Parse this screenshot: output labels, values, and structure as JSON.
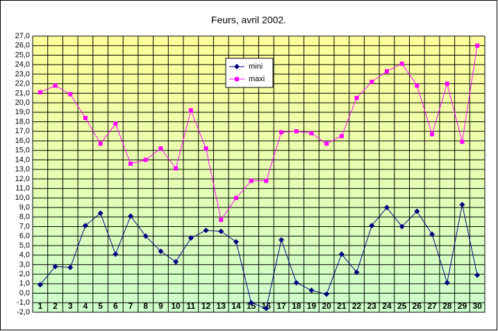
{
  "chart_data": {
    "type": "line",
    "title": "Feurs, avril 2002.",
    "categories": [
      "1",
      "2",
      "3",
      "4",
      "5",
      "6",
      "7",
      "8",
      "9",
      "10",
      "11",
      "12",
      "13",
      "14",
      "15",
      "16",
      "17",
      "18",
      "19",
      "20",
      "21",
      "22",
      "23",
      "24",
      "25",
      "26",
      "27",
      "28",
      "29",
      "30"
    ],
    "series": [
      {
        "name": "mini",
        "color": "#000080",
        "values": [
          0.9,
          2.8,
          2.7,
          7.1,
          8.4,
          4.1,
          8.1,
          6.0,
          4.4,
          3.3,
          5.8,
          6.6,
          6.5,
          5.4,
          -1.0,
          -1.6,
          5.6,
          1.1,
          0.3,
          -0.1,
          4.1,
          2.2,
          7.1,
          9.0,
          7.0,
          8.6,
          6.2,
          1.1,
          9.3,
          1.9
        ]
      },
      {
        "name": "maxi",
        "color": "#ff00ff",
        "values": [
          21.1,
          21.8,
          20.9,
          18.4,
          15.7,
          17.8,
          13.6,
          14.0,
          15.2,
          13.1,
          19.2,
          15.2,
          7.7,
          10.0,
          11.8,
          11.8,
          16.9,
          17.0,
          16.8,
          15.7,
          16.5,
          20.5,
          22.2,
          23.3,
          24.1,
          21.8,
          16.7,
          22.0,
          15.9,
          26.0
        ]
      }
    ],
    "ylim": [
      -2,
      27
    ],
    "yticks": [
      {
        "value": -2,
        "label": "-2,0"
      },
      {
        "value": -1,
        "label": "-1,0"
      },
      {
        "value": 0,
        "label": "0,0"
      },
      {
        "value": 1,
        "label": "1,0"
      },
      {
        "value": 2,
        "label": "2,0"
      },
      {
        "value": 3,
        "label": "3,0"
      },
      {
        "value": 4,
        "label": "4,0"
      },
      {
        "value": 5,
        "label": "5,0"
      },
      {
        "value": 6,
        "label": "6,0"
      },
      {
        "value": 7,
        "label": "7,0"
      },
      {
        "value": 8,
        "label": "8,0"
      },
      {
        "value": 9,
        "label": "9,0"
      },
      {
        "value": 10,
        "label": "10,0"
      },
      {
        "value": 11,
        "label": "11,0"
      },
      {
        "value": 12,
        "label": "12,0"
      },
      {
        "value": 13,
        "label": "13,0"
      },
      {
        "value": 14,
        "label": "14,0"
      },
      {
        "value": 15,
        "label": "15,0"
      },
      {
        "value": 16,
        "label": "16,0"
      },
      {
        "value": 17,
        "label": "17,0"
      },
      {
        "value": 18,
        "label": "18,0"
      },
      {
        "value": 19,
        "label": "19,0"
      },
      {
        "value": 20,
        "label": "20,0"
      },
      {
        "value": 21,
        "label": "21,0"
      },
      {
        "value": 22,
        "label": "22,0"
      },
      {
        "value": 23,
        "label": "23,0"
      },
      {
        "value": 24,
        "label": "24,0"
      },
      {
        "value": 25,
        "label": "25,0"
      },
      {
        "value": 26,
        "label": "26,0"
      },
      {
        "value": 27,
        "label": "27,0"
      }
    ],
    "grid": true
  }
}
